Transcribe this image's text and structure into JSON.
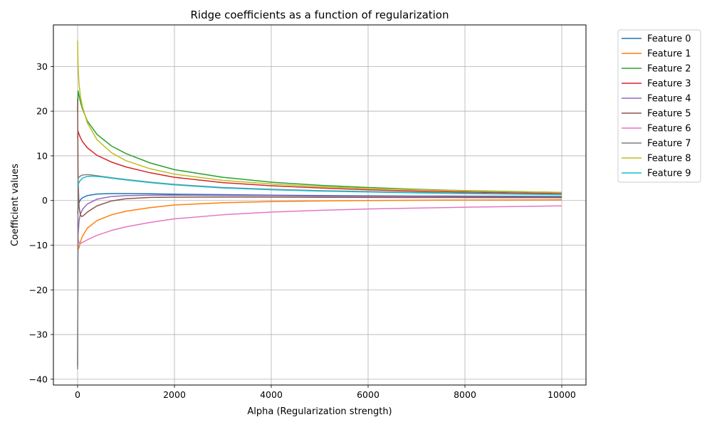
{
  "chart_data": {
    "type": "line",
    "title": "Ridge coefficients as a function of regularization",
    "xlabel": "Alpha (Regularization strength)",
    "ylabel": "Coefficient values",
    "xlim": [
      -500,
      10500
    ],
    "ylim": [
      -41.3,
      39.3
    ],
    "xticks": [
      0,
      2000,
      4000,
      6000,
      8000,
      10000
    ],
    "yticks": [
      -40,
      -30,
      -20,
      -10,
      0,
      10,
      20,
      30
    ],
    "grid": true,
    "legend_position": "outside-top-right",
    "x_axis_max": 10000,
    "series": [
      {
        "name": "Feature 0",
        "color": "#1f77b4",
        "points": [
          [
            0,
            -3
          ],
          [
            10,
            -1.5
          ],
          [
            30,
            -0.5
          ],
          [
            60,
            0.2
          ],
          [
            100,
            0.6
          ],
          [
            200,
            1.1
          ],
          [
            400,
            1.45
          ],
          [
            700,
            1.55
          ],
          [
            1000,
            1.55
          ],
          [
            1500,
            1.5
          ],
          [
            2000,
            1.4
          ],
          [
            3000,
            1.3
          ],
          [
            4000,
            1.2
          ],
          [
            5000,
            1.12
          ],
          [
            6000,
            1.05
          ],
          [
            7000,
            1.0
          ],
          [
            8000,
            0.98
          ],
          [
            9000,
            0.95
          ],
          [
            10000,
            0.92
          ]
        ]
      },
      {
        "name": "Feature 1",
        "color": "#ff7f0e",
        "points": [
          [
            0,
            -10
          ],
          [
            10,
            -11
          ],
          [
            30,
            -10.5
          ],
          [
            60,
            -9.2
          ],
          [
            100,
            -8
          ],
          [
            200,
            -6.2
          ],
          [
            400,
            -4.5
          ],
          [
            700,
            -3.2
          ],
          [
            1000,
            -2.4
          ],
          [
            1500,
            -1.6
          ],
          [
            2000,
            -1.0
          ],
          [
            3000,
            -0.5
          ],
          [
            4000,
            -0.25
          ],
          [
            5000,
            -0.1
          ],
          [
            6000,
            0.0
          ],
          [
            7000,
            0.05
          ],
          [
            8000,
            0.1
          ],
          [
            9000,
            0.12
          ],
          [
            10000,
            0.15
          ]
        ]
      },
      {
        "name": "Feature 2",
        "color": "#2ca02c",
        "points": [
          [
            0,
            20
          ],
          [
            10,
            24.5
          ],
          [
            30,
            23.5
          ],
          [
            60,
            22
          ],
          [
            100,
            20.5
          ],
          [
            200,
            17.8
          ],
          [
            400,
            14.8
          ],
          [
            700,
            12.2
          ],
          [
            1000,
            10.5
          ],
          [
            1500,
            8.4
          ],
          [
            2000,
            6.9
          ],
          [
            3000,
            5.2
          ],
          [
            4000,
            4.1
          ],
          [
            5000,
            3.4
          ],
          [
            6000,
            2.9
          ],
          [
            7000,
            2.5
          ],
          [
            8000,
            2.2
          ],
          [
            9000,
            2.0
          ],
          [
            10000,
            1.8
          ]
        ]
      },
      {
        "name": "Feature 3",
        "color": "#d62728",
        "points": [
          [
            0,
            14
          ],
          [
            10,
            15.5
          ],
          [
            30,
            14.8
          ],
          [
            60,
            14
          ],
          [
            100,
            13.2
          ],
          [
            200,
            11.8
          ],
          [
            400,
            10.1
          ],
          [
            700,
            8.6
          ],
          [
            1000,
            7.5
          ],
          [
            1500,
            6.2
          ],
          [
            2000,
            5.2
          ],
          [
            3000,
            4.0
          ],
          [
            4000,
            3.3
          ],
          [
            5000,
            2.8
          ],
          [
            6000,
            2.4
          ],
          [
            7000,
            2.1
          ],
          [
            8000,
            1.9
          ],
          [
            9000,
            1.7
          ],
          [
            10000,
            1.55
          ]
        ]
      },
      {
        "name": "Feature 4",
        "color": "#9467bd",
        "points": [
          [
            0,
            -37
          ],
          [
            10,
            -8
          ],
          [
            30,
            -4.5
          ],
          [
            60,
            -3
          ],
          [
            100,
            -2
          ],
          [
            200,
            -0.8
          ],
          [
            400,
            0.3
          ],
          [
            700,
            0.9
          ],
          [
            1000,
            1.1
          ],
          [
            1500,
            1.2
          ],
          [
            2000,
            1.2
          ],
          [
            3000,
            1.15
          ],
          [
            4000,
            1.1
          ],
          [
            5000,
            1.0
          ],
          [
            6000,
            0.95
          ],
          [
            7000,
            0.9
          ],
          [
            8000,
            0.85
          ],
          [
            9000,
            0.82
          ],
          [
            10000,
            0.8
          ]
        ]
      },
      {
        "name": "Feature 5",
        "color": "#8c564b",
        "points": [
          [
            0,
            22.8
          ],
          [
            10,
            5
          ],
          [
            30,
            -1.5
          ],
          [
            60,
            -3.3
          ],
          [
            90,
            -3.6
          ],
          [
            130,
            -3.3
          ],
          [
            200,
            -2.6
          ],
          [
            400,
            -1.2
          ],
          [
            700,
            -0.1
          ],
          [
            1000,
            0.4
          ],
          [
            1500,
            0.7
          ],
          [
            2000,
            0.75
          ],
          [
            3000,
            0.78
          ],
          [
            4000,
            0.75
          ],
          [
            5000,
            0.72
          ],
          [
            6000,
            0.7
          ],
          [
            7000,
            0.68
          ],
          [
            8000,
            0.66
          ],
          [
            9000,
            0.64
          ],
          [
            10000,
            0.62
          ]
        ]
      },
      {
        "name": "Feature 6",
        "color": "#e377c2",
        "points": [
          [
            0,
            -5
          ],
          [
            10,
            -8.5
          ],
          [
            30,
            -9.5
          ],
          [
            60,
            -9.6
          ],
          [
            100,
            -9.4
          ],
          [
            200,
            -8.8
          ],
          [
            400,
            -7.8
          ],
          [
            700,
            -6.7
          ],
          [
            1000,
            -5.9
          ],
          [
            1500,
            -4.9
          ],
          [
            2000,
            -4.1
          ],
          [
            3000,
            -3.2
          ],
          [
            4000,
            -2.6
          ],
          [
            5000,
            -2.2
          ],
          [
            6000,
            -1.9
          ],
          [
            7000,
            -1.7
          ],
          [
            8000,
            -1.5
          ],
          [
            9000,
            -1.35
          ],
          [
            10000,
            -1.2
          ]
        ]
      },
      {
        "name": "Feature 7",
        "color": "#7f7f7f",
        "points": [
          [
            0,
            -37.8
          ],
          [
            10,
            5
          ],
          [
            30,
            5.2
          ],
          [
            60,
            5.5
          ],
          [
            100,
            5.7
          ],
          [
            200,
            5.8
          ],
          [
            300,
            5.7
          ],
          [
            500,
            5.4
          ],
          [
            700,
            5.1
          ],
          [
            1000,
            4.7
          ],
          [
            1500,
            4.1
          ],
          [
            2000,
            3.6
          ],
          [
            3000,
            2.9
          ],
          [
            4000,
            2.5
          ],
          [
            5000,
            2.2
          ],
          [
            6000,
            2.0
          ],
          [
            7000,
            1.8
          ],
          [
            8000,
            1.65
          ],
          [
            9000,
            1.5
          ],
          [
            10000,
            1.4
          ]
        ]
      },
      {
        "name": "Feature 8",
        "color": "#bcbd22",
        "points": [
          [
            0,
            35.8
          ],
          [
            10,
            30
          ],
          [
            30,
            26
          ],
          [
            60,
            23.2
          ],
          [
            100,
            21
          ],
          [
            200,
            17.4
          ],
          [
            400,
            13.6
          ],
          [
            700,
            10.7
          ],
          [
            1000,
            8.9
          ],
          [
            1500,
            7.1
          ],
          [
            2000,
            5.9
          ],
          [
            3000,
            4.5
          ],
          [
            4000,
            3.7
          ],
          [
            5000,
            3.1
          ],
          [
            6000,
            2.7
          ],
          [
            7000,
            2.4
          ],
          [
            8000,
            2.15
          ],
          [
            9000,
            1.95
          ],
          [
            10000,
            1.8
          ]
        ]
      },
      {
        "name": "Feature 9",
        "color": "#17becf",
        "points": [
          [
            0,
            3.3
          ],
          [
            20,
            3.8
          ],
          [
            50,
            4.4
          ],
          [
            100,
            5.0
          ],
          [
            200,
            5.4
          ],
          [
            300,
            5.45
          ],
          [
            500,
            5.3
          ],
          [
            700,
            5.0
          ],
          [
            1000,
            4.6
          ],
          [
            1500,
            4.0
          ],
          [
            2000,
            3.5
          ],
          [
            3000,
            2.8
          ],
          [
            4000,
            2.4
          ],
          [
            5000,
            2.1
          ],
          [
            6000,
            1.9
          ],
          [
            7000,
            1.7
          ],
          [
            8000,
            1.55
          ],
          [
            9000,
            1.42
          ],
          [
            10000,
            1.3
          ]
        ]
      }
    ]
  }
}
